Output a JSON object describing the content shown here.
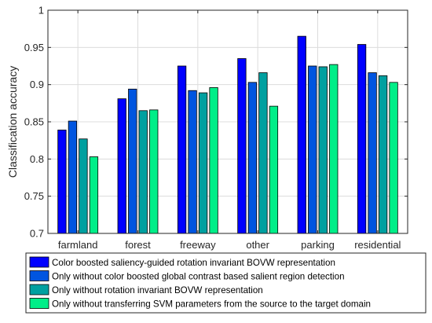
{
  "chart_data": {
    "type": "bar",
    "categories": [
      "farmland",
      "forest",
      "freeway",
      "other",
      "parking",
      "residential"
    ],
    "series": [
      {
        "name": "Color boosted saliency-guided rotation invariant BOVW representation",
        "color": "#0000ff",
        "values": [
          0.839,
          0.881,
          0.925,
          0.935,
          0.965,
          0.954
        ]
      },
      {
        "name": "Only without color boosted global contrast based salient region detection",
        "color": "#0055e0",
        "values": [
          0.851,
          0.894,
          0.892,
          0.903,
          0.925,
          0.916
        ]
      },
      {
        "name": "Only without rotation invariant BOVW representation",
        "color": "#00a0a0",
        "values": [
          0.827,
          0.865,
          0.889,
          0.916,
          0.924,
          0.912
        ]
      },
      {
        "name": "Only without transferring SVM parameters from the source to the target domain",
        "color": "#00ee88",
        "values": [
          0.803,
          0.866,
          0.896,
          0.871,
          0.927,
          0.903
        ]
      }
    ],
    "title": "",
    "xlabel": "",
    "ylabel": "Classification accuracy",
    "ylim": [
      0.7,
      1.0
    ],
    "yticks": [
      "0.7",
      "0.75",
      "0.8",
      "0.85",
      "0.9",
      "0.95",
      "1"
    ],
    "grid": true,
    "legend_position": "bottom"
  }
}
